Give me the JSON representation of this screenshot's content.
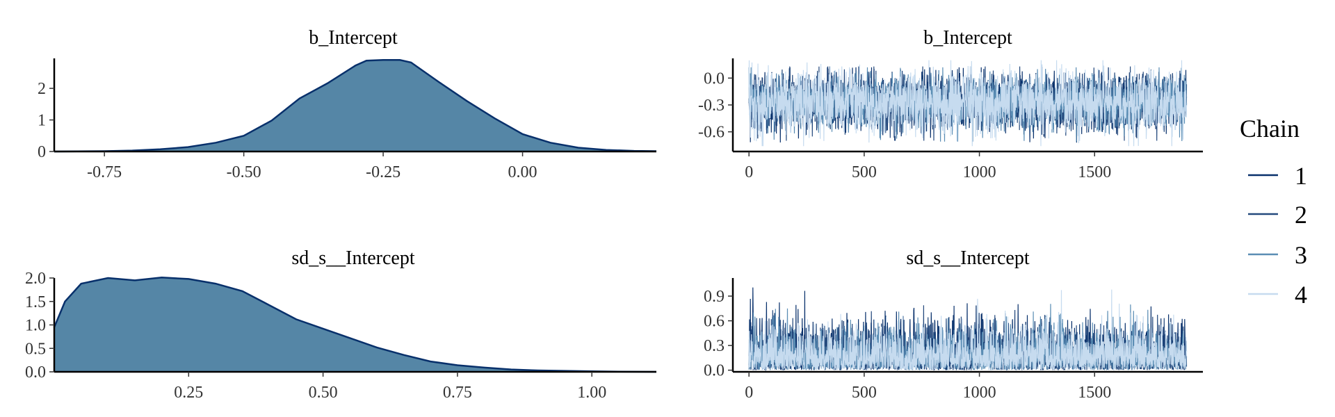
{
  "legend": {
    "title": "Chain",
    "items": [
      {
        "label": "1",
        "color": "#08306b"
      },
      {
        "label": "2",
        "color": "#24497d"
      },
      {
        "label": "3",
        "color": "#5a8db4"
      },
      {
        "label": "4",
        "color": "#c6dbef"
      }
    ]
  },
  "chart_data": [
    {
      "type": "area",
      "title": "b_Intercept",
      "fill_color": "#5586a6",
      "line_color": "#08306b",
      "xlim": [
        -0.84,
        0.24
      ],
      "ylim": [
        0,
        2.95
      ],
      "x_ticks": [
        -0.75,
        -0.5,
        -0.25,
        0.0
      ],
      "x_tick_labels": [
        "-0.75",
        "-0.50",
        "-0.25",
        "0.00"
      ],
      "y_ticks": [
        0,
        1,
        2
      ],
      "y_tick_labels": [
        "0",
        "1",
        "2"
      ],
      "x": [
        -0.84,
        -0.75,
        -0.7,
        -0.65,
        -0.6,
        -0.55,
        -0.5,
        -0.45,
        -0.4,
        -0.35,
        -0.3,
        -0.28,
        -0.25,
        -0.22,
        -0.2,
        -0.15,
        -0.1,
        -0.05,
        0.0,
        0.05,
        0.1,
        0.15,
        0.2,
        0.24
      ],
      "y": [
        0.0,
        0.01,
        0.03,
        0.07,
        0.14,
        0.28,
        0.5,
        0.98,
        1.68,
        2.16,
        2.72,
        2.88,
        2.9,
        2.9,
        2.82,
        2.2,
        1.6,
        1.05,
        0.55,
        0.28,
        0.12,
        0.05,
        0.02,
        0.01
      ]
    },
    {
      "type": "line",
      "title": "b_Intercept",
      "xlim": [
        -70,
        1970
      ],
      "ylim": [
        -0.82,
        0.22
      ],
      "x_ticks": [
        0,
        500,
        1000,
        1500
      ],
      "x_tick_labels": [
        "0",
        "500",
        "1000",
        "1500"
      ],
      "y_ticks": [
        0.0,
        -0.3,
        -0.6
      ],
      "y_tick_labels": [
        "0.0",
        "-0.3",
        "-0.6"
      ],
      "iterations": 1900,
      "series": [
        {
          "chain": "1",
          "mean": -0.27,
          "low": -0.72,
          "high": 0.12
        },
        {
          "chain": "2",
          "mean": -0.27,
          "low": -0.7,
          "high": 0.13
        },
        {
          "chain": "3",
          "mean": -0.27,
          "low": -0.71,
          "high": 0.12
        },
        {
          "chain": "4",
          "mean": -0.27,
          "low": -0.76,
          "high": 0.2
        }
      ]
    },
    {
      "type": "area",
      "title": "sd_s__Intercept",
      "fill_color": "#5586a6",
      "line_color": "#08306b",
      "xlim": [
        0.0,
        1.12
      ],
      "ylim": [
        0,
        2.0
      ],
      "x_ticks": [
        0.25,
        0.5,
        0.75,
        1.0
      ],
      "x_tick_labels": [
        "0.25",
        "0.50",
        "0.75",
        "1.00"
      ],
      "y_ticks": [
        0.0,
        0.5,
        1.0,
        1.5,
        2.0
      ],
      "y_tick_labels": [
        "0.0",
        "0.5",
        "1.0",
        "1.5",
        "2.0"
      ],
      "x": [
        0.0,
        0.02,
        0.05,
        0.1,
        0.15,
        0.2,
        0.25,
        0.3,
        0.35,
        0.4,
        0.45,
        0.5,
        0.55,
        0.6,
        0.65,
        0.7,
        0.75,
        0.8,
        0.85,
        0.9,
        0.95,
        1.0,
        1.05,
        1.12
      ],
      "y": [
        0.95,
        1.5,
        1.88,
        2.0,
        1.95,
        2.01,
        1.98,
        1.88,
        1.72,
        1.42,
        1.12,
        0.92,
        0.72,
        0.52,
        0.36,
        0.22,
        0.14,
        0.09,
        0.05,
        0.03,
        0.02,
        0.01,
        0.005,
        0.0
      ]
    },
    {
      "type": "line",
      "title": "sd_s__Intercept",
      "xlim": [
        -70,
        1970
      ],
      "ylim": [
        -0.02,
        1.12
      ],
      "x_ticks": [
        0,
        500,
        1000,
        1500
      ],
      "x_tick_labels": [
        "0",
        "500",
        "1000",
        "1500"
      ],
      "y_ticks": [
        0.0,
        0.3,
        0.6,
        0.9
      ],
      "y_tick_labels": [
        "0.0",
        "0.3",
        "0.6",
        "0.9"
      ],
      "iterations": 1900,
      "series": [
        {
          "chain": "1",
          "mean": 0.28,
          "low": 0.0,
          "high": 1.1
        },
        {
          "chain": "2",
          "mean": 0.28,
          "low": 0.0,
          "high": 1.02
        },
        {
          "chain": "3",
          "mean": 0.28,
          "low": 0.0,
          "high": 0.98
        },
        {
          "chain": "4",
          "mean": 0.28,
          "low": 0.0,
          "high": 0.98
        }
      ]
    }
  ]
}
